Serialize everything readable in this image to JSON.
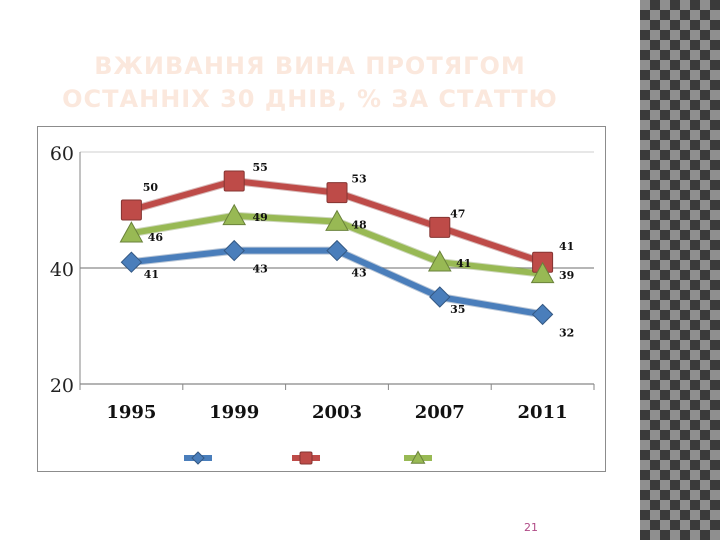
{
  "slide": {
    "title_line1": "ВЖИВАННЯ ВИНА ПРОТЯГОМ",
    "title_line2": "ОСТАННІХ 30 ДНІВ, % ЗА СТАТТЮ",
    "page_number": "21"
  },
  "chart_data": {
    "type": "line",
    "categories": [
      "1995",
      "1999",
      "2003",
      "2007",
      "2011"
    ],
    "series": [
      {
        "values": [
          41,
          43,
          43,
          35,
          32
        ],
        "color": "#4a7ebb",
        "marker": "diamond"
      },
      {
        "values": [
          50,
          55,
          53,
          47,
          41
        ],
        "color": "#be4b48",
        "marker": "square"
      },
      {
        "values": [
          46,
          49,
          48,
          41,
          39
        ],
        "color": "#98b954",
        "marker": "triangle"
      }
    ],
    "yticks": [
      20,
      40,
      60
    ],
    "ylim": [
      20,
      60
    ],
    "grid": true,
    "legend": "bottom"
  }
}
